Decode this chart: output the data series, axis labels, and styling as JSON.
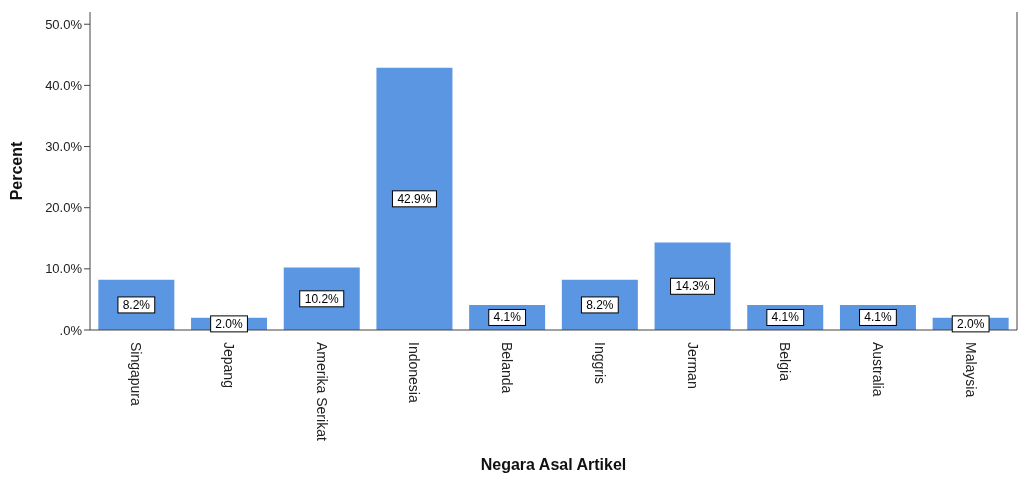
{
  "chart_data": {
    "type": "bar",
    "xlabel": "Negara Asal Artikel",
    "ylabel": "Percent",
    "categories": [
      "Singapura",
      "Jepang",
      "Amerika Serikat",
      "Indonesia",
      "Belanda",
      "Inggris",
      "Jerman",
      "Belgia",
      "Australia",
      "Malaysia"
    ],
    "values": [
      8.2,
      2.0,
      10.2,
      42.9,
      4.1,
      8.2,
      14.3,
      4.1,
      4.1,
      2.0
    ],
    "value_labels": [
      "8.2%",
      "2.0%",
      "10.2%",
      "42.9%",
      "4.1%",
      "8.2%",
      "14.3%",
      "4.1%",
      "4.1%",
      "2.0%"
    ],
    "color": "#5b96e3",
    "ylim": [
      0,
      52
    ],
    "yticks": [
      {
        "value": 0,
        "label": ".0%"
      },
      {
        "value": 10,
        "label": "10.0%"
      },
      {
        "value": 20,
        "label": "20.0%"
      },
      {
        "value": 30,
        "label": "30.0%"
      },
      {
        "value": 40,
        "label": "40.0%"
      },
      {
        "value": 50,
        "label": "50.0%"
      }
    ],
    "grid": false,
    "legend": false
  }
}
